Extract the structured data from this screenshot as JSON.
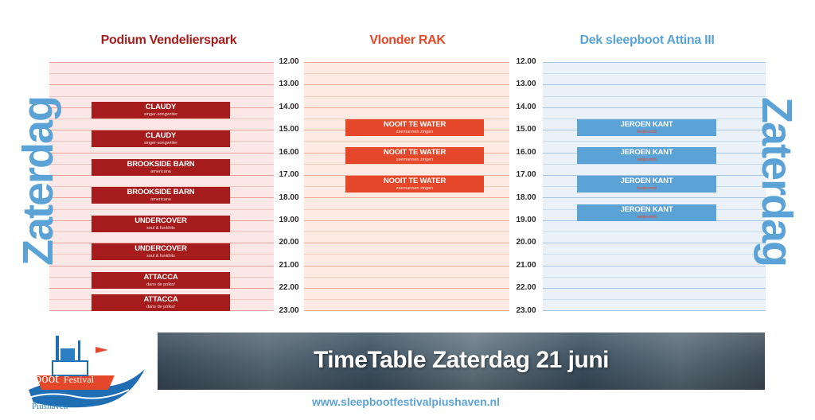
{
  "stages": [
    {
      "title": "Podium Vendelierspark",
      "color": "#a61c1c"
    },
    {
      "title": "Vlonder RAK",
      "color": "#e5472a"
    },
    {
      "title": "Dek sleepboot Attina III",
      "color": "#5ba3d6"
    }
  ],
  "times": [
    "12.00",
    "13.00",
    "14.00",
    "15.00",
    "16.00",
    "17.00",
    "18.00",
    "19.00",
    "20.00",
    "21.00",
    "22.00",
    "23.00"
  ],
  "day_label": "Zaterdag",
  "acts": {
    "vendelierspark": [
      {
        "name": "CLAUDY",
        "genre": "singer-songwriter"
      },
      {
        "name": "CLAUDY",
        "genre": "singer-songwriter"
      },
      {
        "name": "BROOKSIDE BARN",
        "genre": "americana"
      },
      {
        "name": "BROOKSIDE BARN",
        "genre": "americana"
      },
      {
        "name": "UNDERCOVER",
        "genre": "soul & funkhits"
      },
      {
        "name": "UNDERCOVER",
        "genre": "soul & funkhits"
      },
      {
        "name": "ATTACCA",
        "genre": "dans de polka!"
      },
      {
        "name": "ATTACCA",
        "genre": "dans de polka!"
      }
    ],
    "rak": [
      {
        "name": "NOOIT TE WATER",
        "genre": "zeemannen zingen"
      },
      {
        "name": "NOOIT TE WATER",
        "genre": "zeemannen zingen"
      },
      {
        "name": "NOOIT TE WATER",
        "genre": "zeemannen zingen"
      }
    ],
    "attina": [
      {
        "name": "JEROEN KANT",
        "genre": "liedjesmid"
      },
      {
        "name": "JEROEN KANT",
        "genre": "liedjesmid"
      },
      {
        "name": "JEROEN KANT",
        "genre": "liedjesmid"
      },
      {
        "name": "JEROEN KANT",
        "genre": "liedjesmid"
      }
    ]
  },
  "banner_title": "TimeTable Zaterdag 21 juni",
  "website": "www.sleepbootfestivalpiushaven.nl",
  "logo": {
    "word1": "Sleepboot",
    "word2": "Festival",
    "dates": "21-22 Juni",
    "place": "Piushaven"
  }
}
